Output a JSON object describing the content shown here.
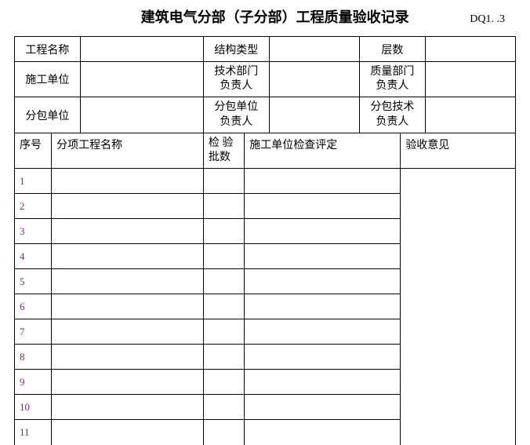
{
  "header": {
    "title": "建筑电气分部（子分部）工程质量验收记录",
    "doc_code": "DQ1. .3"
  },
  "info": {
    "row1": {
      "project_name_label": "工程名称",
      "project_name_value": "",
      "structure_type_label": "结构类型",
      "structure_type_value": "",
      "floors_label": "层数",
      "floors_value": ""
    },
    "row2": {
      "contractor_label": "施工单位",
      "contractor_value": "",
      "tech_dept_label": "技术部门\n负责人",
      "tech_dept_value": "",
      "quality_dept_label": "质量部门\n负责人",
      "quality_dept_value": ""
    },
    "row3": {
      "subcontractor_label": "分包单位",
      "subcontractor_value": "",
      "sub_unit_label": "分包单位\n负责人",
      "sub_unit_value": "",
      "sub_tech_label": "分包技术\n负责人",
      "sub_tech_value": ""
    }
  },
  "data_table": {
    "headers": {
      "seq": "序号",
      "item_name": "分项工程名称",
      "check_batch": "检  验\n批数",
      "contractor_eval": "施工单位检查评定",
      "acceptance": "验收意见"
    },
    "rows": [
      {
        "num": "1",
        "name": "",
        "batch": "",
        "eval": ""
      },
      {
        "num": "2",
        "name": "",
        "batch": "",
        "eval": ""
      },
      {
        "num": "3",
        "name": "",
        "batch": "",
        "eval": ""
      },
      {
        "num": "4",
        "name": "",
        "batch": "",
        "eval": ""
      },
      {
        "num": "5",
        "name": "",
        "batch": "",
        "eval": ""
      },
      {
        "num": "6",
        "name": "",
        "batch": "",
        "eval": ""
      },
      {
        "num": "7",
        "name": "",
        "batch": "",
        "eval": ""
      },
      {
        "num": "8",
        "name": "",
        "batch": "",
        "eval": ""
      },
      {
        "num": "9",
        "name": "",
        "batch": "",
        "eval": ""
      },
      {
        "num": "10",
        "name": "",
        "batch": "",
        "eval": ""
      },
      {
        "num": "11",
        "name": "",
        "batch": "",
        "eval": ""
      }
    ]
  },
  "styling": {
    "background_color": "#ffffff",
    "border_color": "#000000",
    "text_color": "#000000",
    "row_num_color": "#663399",
    "title_fontsize": 18,
    "body_fontsize": 14
  }
}
